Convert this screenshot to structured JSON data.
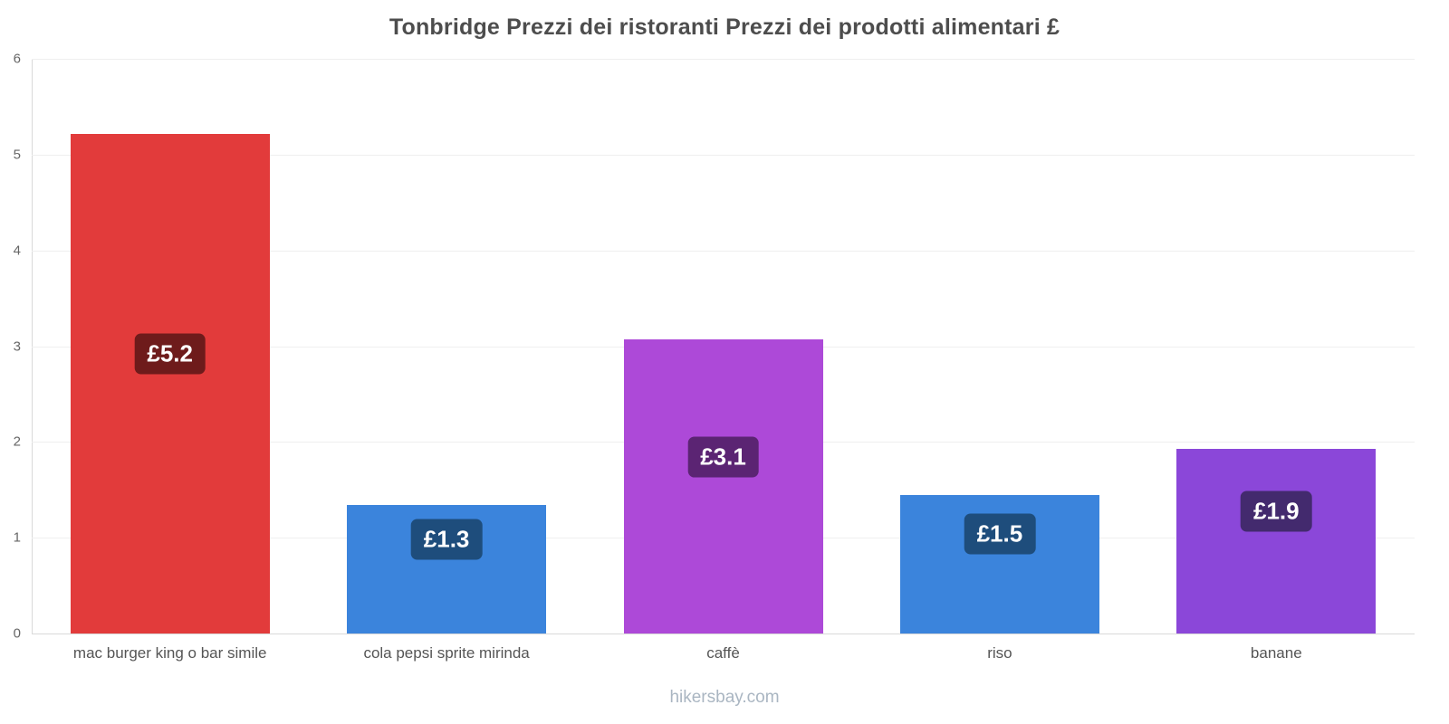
{
  "page": {
    "footer": "hikersbay.com"
  },
  "chart_data": {
    "type": "bar",
    "title": "Tonbridge Prezzi dei ristoranti Prezzi dei prodotti alimentari £",
    "categories": [
      "mac burger king o bar simile",
      "cola pepsi sprite mirinda",
      "caffè",
      "riso",
      "banane"
    ],
    "values": [
      5.22,
      1.34,
      3.07,
      1.45,
      1.93
    ],
    "value_labels": [
      "£5.2",
      "£1.3",
      "£3.1",
      "£1.5",
      "£1.9"
    ],
    "bar_colors": [
      "#e23b3b",
      "#3b84dc",
      "#ad49d8",
      "#3b84dc",
      "#8b47d9"
    ],
    "badge_colors": [
      "#6e1b1b",
      "#1e4d7c",
      "#5b2473",
      "#1e4d7c",
      "#432a6e"
    ],
    "currency": "£",
    "xlabel": "",
    "ylabel": "",
    "ylim": [
      0,
      6
    ],
    "yticks": [
      0,
      1,
      2,
      3,
      4,
      5,
      6
    ],
    "grid": true,
    "legend": "none"
  }
}
